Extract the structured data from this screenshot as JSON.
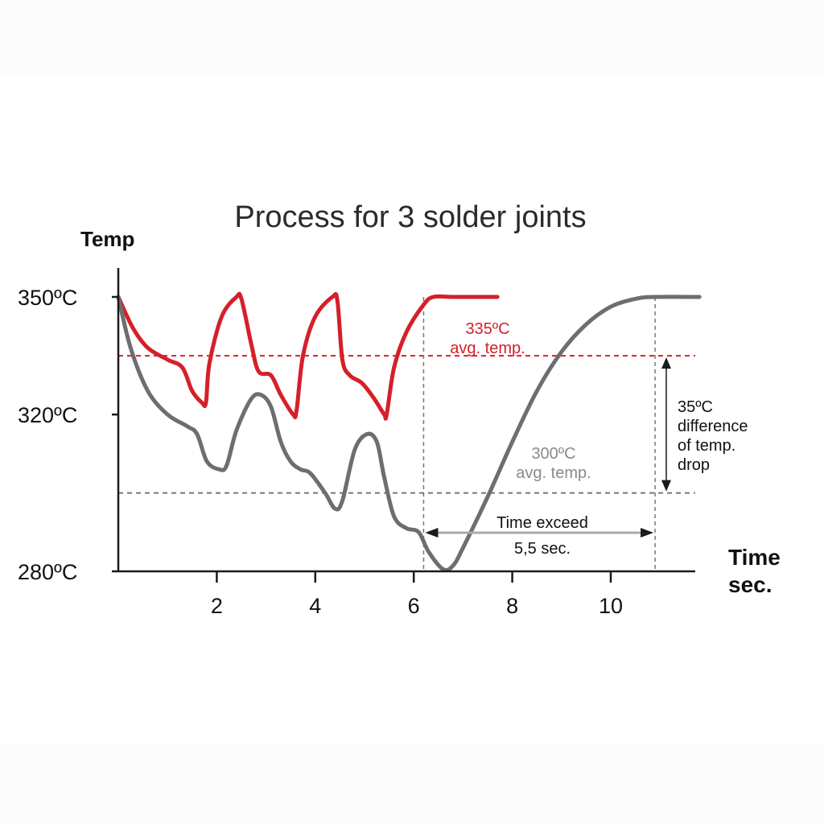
{
  "colors": {
    "red": "#d52029",
    "gray": "#6e6e72",
    "axis": "#1a1a1a",
    "dashed": "#777777"
  },
  "chart_data": {
    "type": "line",
    "title": "Process for 3 solder joints",
    "ylabel": "Temp",
    "xlabel_line1": "Time",
    "xlabel_line2": "sec.",
    "xlim": [
      0,
      11.8
    ],
    "ylim": [
      280,
      350
    ],
    "x_ticks": [
      {
        "value": 2,
        "label": "2"
      },
      {
        "value": 4,
        "label": "4"
      },
      {
        "value": 6,
        "label": "6"
      },
      {
        "value": 8,
        "label": "8"
      },
      {
        "value": 10,
        "label": "10"
      }
    ],
    "y_ticks": [
      {
        "value": 350,
        "label": "350ºC"
      },
      {
        "value": 320,
        "label": "320ºC"
      },
      {
        "value": 280,
        "label": "280ºC"
      }
    ],
    "series": [
      {
        "color": "#d52029",
        "points": [
          [
            0,
            350
          ],
          [
            0.3,
            342
          ],
          [
            0.6,
            337
          ],
          [
            1.0,
            334
          ],
          [
            1.3,
            332
          ],
          [
            1.5,
            326
          ],
          [
            1.7,
            323
          ],
          [
            1.78,
            323
          ],
          [
            1.85,
            333
          ],
          [
            2.1,
            345
          ],
          [
            2.4,
            350
          ],
          [
            2.5,
            349.5
          ],
          [
            2.7,
            338
          ],
          [
            2.85,
            331
          ],
          [
            3.1,
            330
          ],
          [
            3.3,
            325
          ],
          [
            3.55,
            320
          ],
          [
            3.62,
            321
          ],
          [
            3.75,
            335
          ],
          [
            4.0,
            345
          ],
          [
            4.35,
            350
          ],
          [
            4.45,
            349
          ],
          [
            4.55,
            334
          ],
          [
            4.7,
            330
          ],
          [
            4.95,
            328
          ],
          [
            5.2,
            324
          ],
          [
            5.4,
            320
          ],
          [
            5.45,
            320
          ],
          [
            5.6,
            332
          ],
          [
            5.85,
            341
          ],
          [
            6.2,
            348
          ],
          [
            6.4,
            350
          ],
          [
            6.8,
            350
          ],
          [
            7.7,
            350
          ]
        ]
      },
      {
        "color": "#6e6e72",
        "points": [
          [
            0,
            350
          ],
          [
            0.25,
            337
          ],
          [
            0.6,
            326
          ],
          [
            1.0,
            320
          ],
          [
            1.4,
            317
          ],
          [
            1.6,
            315
          ],
          [
            1.8,
            308
          ],
          [
            2.05,
            306
          ],
          [
            2.2,
            307
          ],
          [
            2.4,
            316
          ],
          [
            2.7,
            324
          ],
          [
            2.9,
            325
          ],
          [
            3.1,
            322
          ],
          [
            3.3,
            313
          ],
          [
            3.5,
            308
          ],
          [
            3.7,
            306
          ],
          [
            3.9,
            305
          ],
          [
            4.2,
            300
          ],
          [
            4.4,
            296
          ],
          [
            4.55,
            298
          ],
          [
            4.8,
            311
          ],
          [
            5.05,
            315
          ],
          [
            5.25,
            313
          ],
          [
            5.4,
            304
          ],
          [
            5.6,
            294
          ],
          [
            5.85,
            291
          ],
          [
            6.1,
            290
          ],
          [
            6.3,
            285
          ],
          [
            6.6,
            280.5
          ],
          [
            6.8,
            281.5
          ],
          [
            7.0,
            286
          ],
          [
            7.5,
            299
          ],
          [
            8.0,
            313
          ],
          [
            8.5,
            326
          ],
          [
            9.0,
            336
          ],
          [
            9.5,
            343
          ],
          [
            10.0,
            347.5
          ],
          [
            10.5,
            349.5
          ],
          [
            10.9,
            350
          ],
          [
            11.8,
            350
          ]
        ]
      }
    ],
    "reference_lines": [
      {
        "y": 335,
        "color": "#d52029",
        "style": "dashed"
      },
      {
        "y": 300,
        "color": "#777777",
        "style": "dashed"
      }
    ],
    "annotations": {
      "red_avg": {
        "line1": "335ºC",
        "line2": "avg. temp."
      },
      "gray_avg": {
        "line1": "300ºC",
        "line2": "avg. temp."
      },
      "difference": {
        "line1": "35ºC",
        "line2": "difference",
        "line3": "of temp.",
        "line4": "drop"
      },
      "time_exceed": {
        "line1": "Time exceed",
        "line2": "5,5 sec.",
        "from_x": 6.2,
        "to_x": 10.9
      }
    }
  }
}
